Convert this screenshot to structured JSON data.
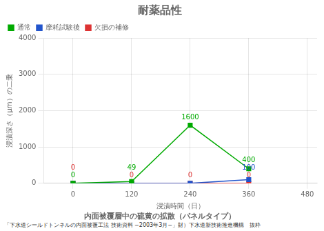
{
  "chart_data": {
    "type": "line",
    "title": "耐薬品性",
    "subtitle": "内面被覆層中の硫黄の拡散（パネルタイプ）",
    "footnote": "「下水道シールドトンネルの内面被覆工法 技術資料 −2003年3月−」財）下水道新技術推進機構　抜粋",
    "xlabel": "浸漬時間（日）",
    "ylabel": "浸漬深さ（μm）の二乗",
    "xlim": [
      -60,
      500
    ],
    "ylim": [
      0,
      4000
    ],
    "xticks": [
      0,
      120,
      240,
      360,
      480
    ],
    "yticks": [
      0,
      1000,
      2000,
      3000,
      4000
    ],
    "grid": true,
    "legend": "upper left",
    "data_labels": true,
    "marker": "square",
    "line_style": "solid",
    "x": [
      0,
      120,
      240,
      360
    ],
    "series": [
      {
        "name": "通常",
        "color": "#00aa00",
        "values": [
          0,
          49,
          1600,
          400
        ],
        "value_labels": [
          "0",
          "49",
          "1600",
          "400"
        ]
      },
      {
        "name": "摩耗試験後",
        "color": "#2255cc",
        "values": [
          0,
          0,
          0,
          100
        ],
        "value_labels": [
          null,
          null,
          null,
          "100"
        ]
      },
      {
        "name": "欠損の補修",
        "color": "#dd3333",
        "values": [
          0,
          0,
          0,
          0
        ],
        "value_labels": [
          "0",
          "0",
          "0",
          "0"
        ]
      }
    ]
  }
}
